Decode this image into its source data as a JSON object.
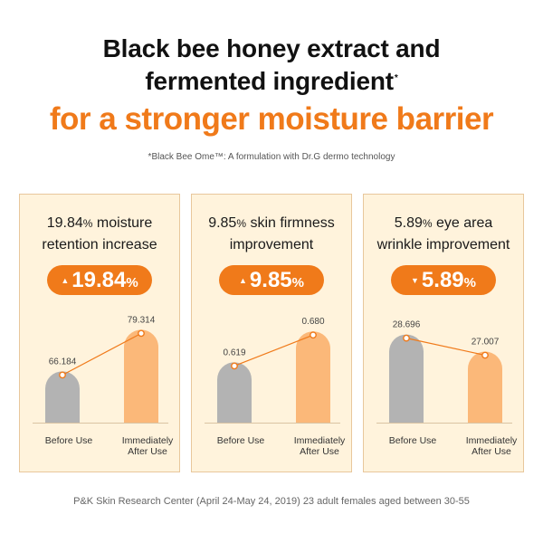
{
  "headline": {
    "line1": "Black bee honey extract and",
    "line2": "fermented ingredient",
    "line2_mark": "*",
    "line3": "for a stronger moisture barrier"
  },
  "footnote": "*Black Bee Ome™: A formulation with Dr.G dermo technology",
  "source": "P&K Skin Research Center (April 24-May 24, 2019) 23 adult females aged between 30-55",
  "colors": {
    "accent": "#f07a1a",
    "before_bar": "#b3b3b3",
    "after_bar": "#fbb879",
    "card_bg": "#fff3dc"
  },
  "chart_data": [
    {
      "type": "bar",
      "title_value": "19.84",
      "title_unit": "%",
      "title_text": "moisture",
      "title_line2": "retention increase",
      "badge_direction": "up",
      "badge_arrow": "▲",
      "badge_value": "19.84",
      "badge_unit": "%",
      "categories": [
        "Before Use",
        "Immediately After Use"
      ],
      "category_lines": [
        [
          "Before Use"
        ],
        [
          "Immediately",
          "After Use"
        ]
      ],
      "values": [
        66.184,
        79.314
      ],
      "value_labels": [
        "66.184",
        "79.314"
      ],
      "ylim": [
        50,
        82
      ]
    },
    {
      "type": "bar",
      "title_value": "9.85",
      "title_unit": "%",
      "title_text": "skin firmness",
      "title_line2": "improvement",
      "badge_direction": "up",
      "badge_arrow": "▲",
      "badge_value": "9.85",
      "badge_unit": "%",
      "categories": [
        "Before Use",
        "Immediately After Use"
      ],
      "category_lines": [
        [
          "Before Use"
        ],
        [
          "Immediately",
          "After Use"
        ]
      ],
      "values": [
        0.619,
        0.68
      ],
      "value_labels": [
        "0.619",
        "0.680"
      ],
      "ylim": [
        0.5,
        0.7
      ]
    },
    {
      "type": "bar",
      "title_value": "5.89",
      "title_unit": "%",
      "title_text": "eye area",
      "title_line2": "wrinkle improvement",
      "badge_direction": "down",
      "badge_arrow": "▼",
      "badge_value": "5.89",
      "badge_unit": "%",
      "categories": [
        "Before Use",
        "Immediately After Use"
      ],
      "category_lines": [
        [
          "Before Use"
        ],
        [
          "Immediately",
          "After Use"
        ]
      ],
      "values": [
        28.696,
        27.007
      ],
      "value_labels": [
        "28.696",
        "27.007"
      ],
      "ylim": [
        20,
        30
      ]
    }
  ]
}
